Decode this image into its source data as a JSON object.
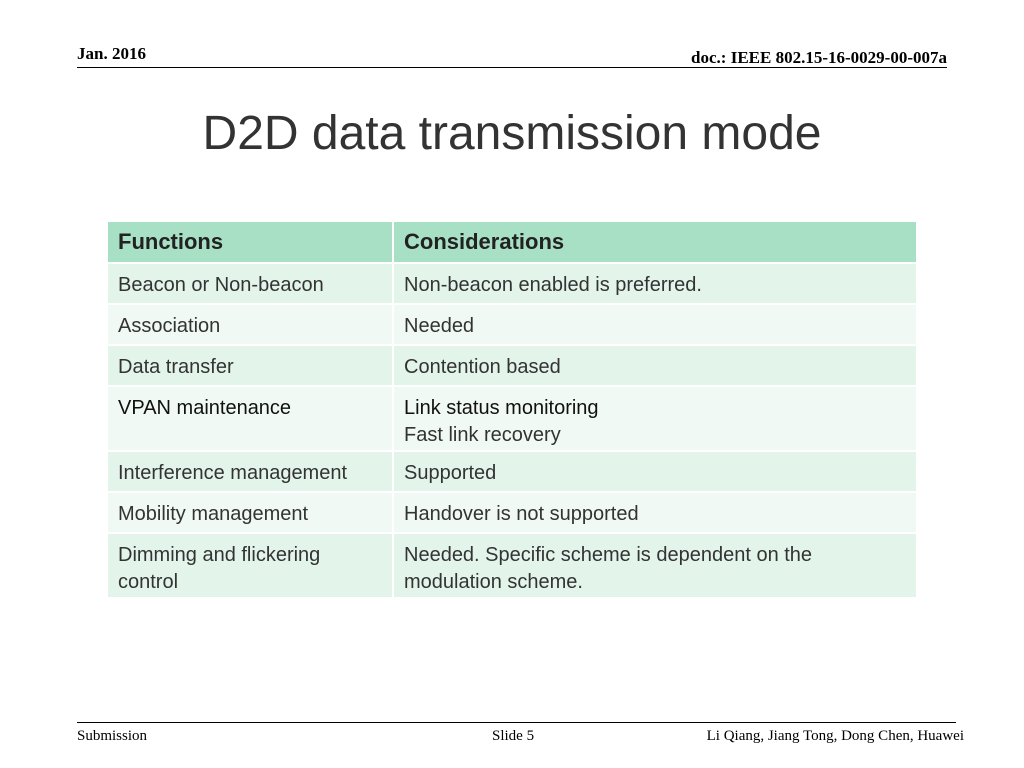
{
  "header": {
    "date": "Jan. 2016",
    "doc_id": "doc.: IEEE 802.15-16-0029-00-007a"
  },
  "title": "D2D data transmission mode",
  "table": {
    "headers": [
      "Functions",
      "Considerations"
    ],
    "rows": [
      {
        "function": "Beacon or Non-beacon",
        "consideration": [
          "Non-beacon enabled is preferred."
        ]
      },
      {
        "function": "Association",
        "consideration": [
          "Needed"
        ]
      },
      {
        "function": "Data transfer",
        "consideration": [
          "Contention based"
        ]
      },
      {
        "function": "VPAN maintenance",
        "consideration": [
          "Link status monitoring",
          "Fast link recovery"
        ]
      },
      {
        "function": "Interference management",
        "consideration": [
          "Supported"
        ]
      },
      {
        "function": "Mobility management",
        "consideration": [
          "Handover is not supported"
        ]
      },
      {
        "function": "Dimming and flickering control",
        "consideration": [
          "Needed. Specific scheme is dependent on the modulation scheme."
        ]
      }
    ]
  },
  "footer": {
    "left": "Submission",
    "center": "Slide 5",
    "right": "Li Qiang, Jiang Tong, Dong Chen, Huawei"
  },
  "colors": {
    "header_row": "#a8e0c6",
    "row_odd": "#e3f4eb",
    "row_even": "#f0f9f4",
    "title_text": "#333333"
  }
}
